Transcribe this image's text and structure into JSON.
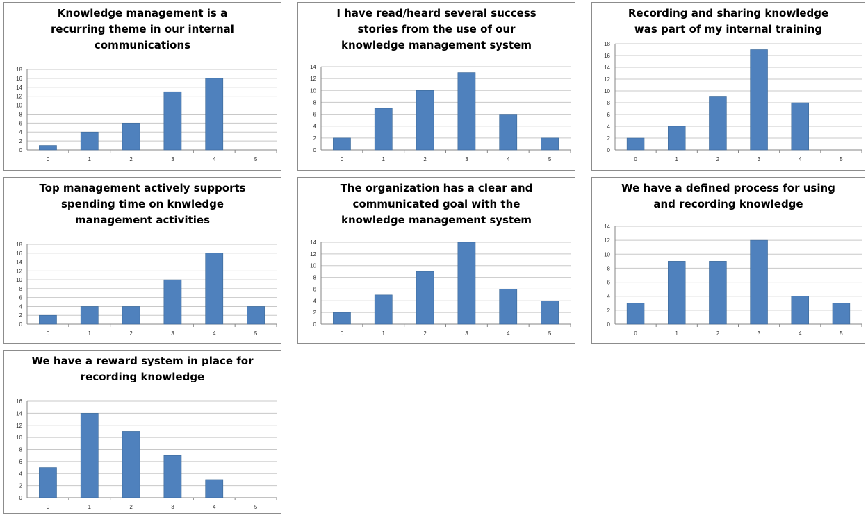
{
  "colors": {
    "bar": "#4F81BD",
    "bar_edge": "#3A6796",
    "grid": "#C8C8C8",
    "axis": "#868686",
    "border": "#8C8C8C"
  },
  "chart_data": [
    {
      "type": "bar",
      "title": "Knowledge management is a\nrecurring theme in our internal\ncommunications",
      "categories": [
        "0",
        "1",
        "2",
        "3",
        "4",
        "5"
      ],
      "values": [
        1,
        4,
        6,
        13,
        16,
        0
      ],
      "yticks": [
        "0",
        "2",
        "4",
        "6",
        "8",
        "10",
        "12",
        "14",
        "16",
        "18"
      ],
      "ylim": [
        0,
        18
      ],
      "grid": true,
      "legend": "none"
    },
    {
      "type": "bar",
      "title": "I have read/heard several success\nstories from the use of our\nknowledge management system",
      "categories": [
        "0",
        "1",
        "2",
        "3",
        "4",
        "5"
      ],
      "values": [
        2,
        7,
        10,
        13,
        6,
        2
      ],
      "yticks": [
        "0",
        "2",
        "4",
        "6",
        "8",
        "10",
        "12",
        "14"
      ],
      "ylim": [
        0,
        14
      ],
      "grid": true,
      "legend": "none"
    },
    {
      "type": "bar",
      "title": "Recording and sharing knowledge\nwas part of my internal training",
      "categories": [
        "0",
        "1",
        "2",
        "3",
        "4",
        "5"
      ],
      "values": [
        2,
        4,
        9,
        17,
        8,
        0
      ],
      "yticks": [
        "0",
        "2",
        "4",
        "6",
        "8",
        "10",
        "12",
        "14",
        "16",
        "18"
      ],
      "ylim": [
        0,
        18
      ],
      "grid": true,
      "legend": "none"
    },
    {
      "type": "bar",
      "title": "Top management actively supports\nspending time on knwledge\nmanagement activities",
      "categories": [
        "0",
        "1",
        "2",
        "3",
        "4",
        "5"
      ],
      "values": [
        2,
        4,
        4,
        10,
        16,
        4
      ],
      "yticks": [
        "0",
        "2",
        "4",
        "6",
        "8",
        "10",
        "12",
        "14",
        "16",
        "18"
      ],
      "ylim": [
        0,
        18
      ],
      "grid": true,
      "legend": "none"
    },
    {
      "type": "bar",
      "title": "The organization has a clear and\ncommunicated goal with the\nknowledge management system",
      "categories": [
        "0",
        "1",
        "2",
        "3",
        "4",
        "5"
      ],
      "values": [
        2,
        5,
        9,
        14,
        6,
        4
      ],
      "yticks": [
        "0",
        "2",
        "4",
        "6",
        "8",
        "10",
        "12",
        "14"
      ],
      "ylim": [
        0,
        14
      ],
      "grid": true,
      "legend": "none"
    },
    {
      "type": "bar",
      "title": "We have a defined process for using\nand recording knowledge",
      "categories": [
        "0",
        "1",
        "2",
        "3",
        "4",
        "5"
      ],
      "values": [
        3,
        9,
        9,
        12,
        4,
        3
      ],
      "yticks": [
        "0",
        "2",
        "4",
        "6",
        "8",
        "10",
        "12",
        "14"
      ],
      "ylim": [
        0,
        14
      ],
      "grid": true,
      "legend": "none"
    },
    {
      "type": "bar",
      "title": "We have a reward system in place for\nrecording knowledge",
      "categories": [
        "0",
        "1",
        "2",
        "3",
        "4",
        "5"
      ],
      "values": [
        5,
        14,
        11,
        7,
        3,
        0
      ],
      "yticks": [
        "0",
        "2",
        "4",
        "6",
        "8",
        "10",
        "12",
        "14",
        "16"
      ],
      "ylim": [
        0,
        16
      ],
      "grid": true,
      "legend": "none"
    }
  ]
}
